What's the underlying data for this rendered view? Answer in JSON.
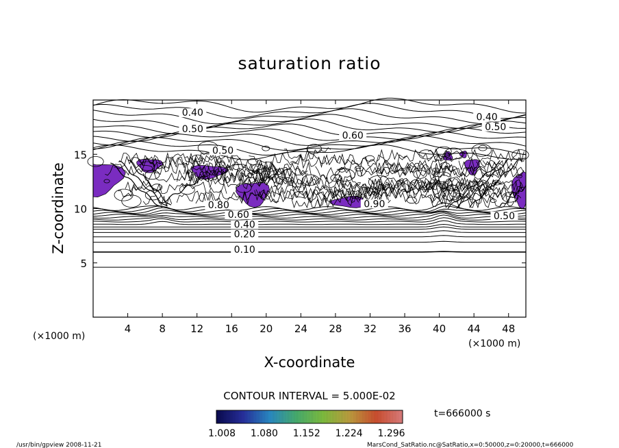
{
  "chart_data": {
    "type": "contour",
    "title": "saturation ratio",
    "xlabel": "X-coordinate",
    "ylabel": "Z-coordinate",
    "x_unit": "(×1000 m)",
    "z_unit": "(×1000 m)",
    "xlim": [
      0,
      50
    ],
    "ylim": [
      0,
      20
    ],
    "x_ticks": [
      4,
      8,
      12,
      16,
      20,
      24,
      28,
      32,
      36,
      40,
      44,
      48
    ],
    "y_ticks": [
      5,
      10,
      15
    ],
    "contour_interval_label": "CONTOUR INTERVAL = 5.000E-02",
    "time_label": "t=666000 s",
    "contour_labels": [
      {
        "text": "0.10",
        "x": 17.5,
        "z": 6.0
      },
      {
        "text": "0.20",
        "x": 17.5,
        "z": 7.4
      },
      {
        "text": "0.40",
        "x": 17.5,
        "z": 8.3
      },
      {
        "text": "0.60",
        "x": 16.8,
        "z": 9.2
      },
      {
        "text": "0.80",
        "x": 14.5,
        "z": 10.1
      },
      {
        "text": "0.90",
        "x": 32.5,
        "z": 10.2
      },
      {
        "text": "0.50",
        "x": 47.5,
        "z": 9.1
      },
      {
        "text": "0.40",
        "x": 11.5,
        "z": 18.6
      },
      {
        "text": "0.50",
        "x": 11.5,
        "z": 17.1
      },
      {
        "text": "0.50",
        "x": 15.0,
        "z": 15.1
      },
      {
        "text": "0.60",
        "x": 30.0,
        "z": 16.5
      },
      {
        "text": "0.40",
        "x": 45.5,
        "z": 18.2
      },
      {
        "text": "0.50",
        "x": 46.5,
        "z": 17.3
      }
    ],
    "shading_colorbar": {
      "tick_labels": [
        "1.008",
        "1.080",
        "1.152",
        "1.224",
        "1.296"
      ],
      "min": 1.008,
      "max": 1.296,
      "colors": [
        "#0a0a50",
        "#2830a0",
        "#2a8cc8",
        "#48b070",
        "#80c040",
        "#c0a040",
        "#d05030",
        "#e08080"
      ]
    },
    "shaded_regions_color": "#7a2cc0",
    "grid": false,
    "legend": "bottom-center"
  },
  "footer": {
    "left": "/usr/bin/gpview   2008-11-21",
    "right": "MarsCond_SatRatio.nc@SatRatio,x=0:50000,z=0:20000,t=666000"
  }
}
